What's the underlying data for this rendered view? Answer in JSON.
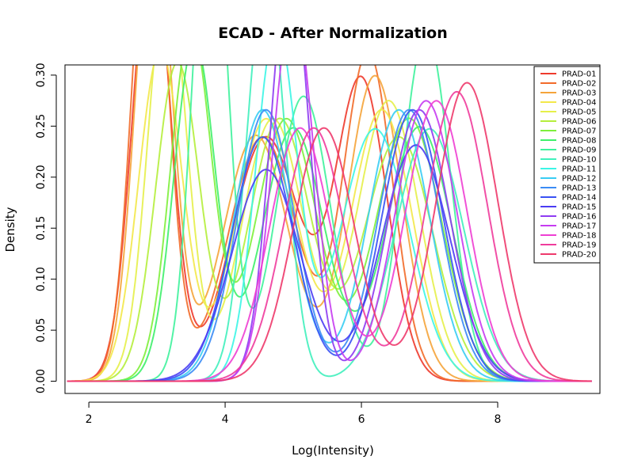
{
  "chart_data": {
    "type": "line",
    "title": "ECAD - After Normalization",
    "xlabel": "Log(Intensity)",
    "ylabel": "Density",
    "xlim": [
      1.65,
      9.5
    ],
    "ylim": [
      -0.012,
      0.31
    ],
    "xticks": [
      2,
      4,
      6,
      8
    ],
    "yticks": [
      0.0,
      0.05,
      0.1,
      0.15,
      0.2,
      0.25,
      0.3
    ],
    "ytick_labels": [
      "0.00",
      "0.05",
      "0.10",
      "0.15",
      "0.20",
      "0.25",
      "0.30"
    ],
    "legend_position": "top-right",
    "grid": false,
    "series": [
      {
        "name": "PRAD-01",
        "color": "#ee3a2c",
        "peaks": [
          [
            2.92,
            0.28,
            0.3
          ],
          [
            4.6,
            0.5,
            0.3
          ],
          [
            6.0,
            0.38,
            0.28
          ]
        ]
      },
      {
        "name": "PRAD-02",
        "color": "#f26b2a",
        "peaks": [
          [
            2.9,
            0.26,
            0.32
          ],
          [
            4.55,
            0.5,
            0.3
          ],
          [
            6.1,
            0.36,
            0.29
          ]
        ]
      },
      {
        "name": "PRAD-03",
        "color": "#f5a43a",
        "peaks": [
          [
            2.95,
            0.27,
            0.31
          ],
          [
            4.45,
            0.48,
            0.29
          ],
          [
            6.2,
            0.4,
            0.3
          ]
        ]
      },
      {
        "name": "PRAD-04",
        "color": "#f3e84a",
        "peaks": [
          [
            3.05,
            0.32,
            0.26
          ],
          [
            4.6,
            0.45,
            0.29
          ],
          [
            6.3,
            0.45,
            0.3
          ]
        ]
      },
      {
        "name": "PRAD-05",
        "color": "#e6f04a",
        "peaks": [
          [
            3.15,
            0.28,
            0.28
          ],
          [
            4.7,
            0.45,
            0.29
          ],
          [
            6.4,
            0.45,
            0.31
          ]
        ]
      },
      {
        "name": "PRAD-06",
        "color": "#b5ee3c",
        "peaks": [
          [
            3.3,
            0.32,
            0.25
          ],
          [
            4.8,
            0.45,
            0.29
          ],
          [
            6.55,
            0.5,
            0.3
          ]
        ]
      },
      {
        "name": "PRAD-07",
        "color": "#7eef3c",
        "peaks": [
          [
            3.5,
            0.3,
            0.26
          ],
          [
            4.9,
            0.45,
            0.29
          ],
          [
            6.7,
            0.48,
            0.31
          ]
        ]
      },
      {
        "name": "PRAD-08",
        "color": "#3ef06a",
        "peaks": [
          [
            3.55,
            0.3,
            0.25
          ],
          [
            5.0,
            0.45,
            0.28
          ],
          [
            6.85,
            0.48,
            0.3
          ]
        ]
      },
      {
        "name": "PRAD-09",
        "color": "#3ff29c",
        "peaks": [
          [
            3.78,
            0.25,
            0.32
          ],
          [
            5.15,
            0.4,
            0.28
          ],
          [
            6.95,
            0.35,
            0.3
          ]
        ]
      },
      {
        "name": "PRAD-10",
        "color": "#40f0bc",
        "peaks": [
          [
            4.6,
            0.28,
            0.28
          ],
          [
            7.0,
            0.5,
            0.31
          ]
        ]
      },
      {
        "name": "PRAD-11",
        "color": "#3cf5e6",
        "peaks": [
          [
            4.75,
            0.3,
            0.26
          ],
          [
            6.2,
            0.5,
            0.31
          ]
        ]
      },
      {
        "name": "PRAD-12",
        "color": "#39cdf3",
        "peaks": [
          [
            4.55,
            0.42,
            0.28
          ],
          [
            6.55,
            0.45,
            0.3
          ]
        ]
      },
      {
        "name": "PRAD-13",
        "color": "#3b8cf5",
        "peaks": [
          [
            4.6,
            0.42,
            0.28
          ],
          [
            6.7,
            0.45,
            0.3
          ]
        ]
      },
      {
        "name": "PRAD-14",
        "color": "#3a52f4",
        "peaks": [
          [
            4.55,
            0.45,
            0.27
          ],
          [
            6.75,
            0.45,
            0.3
          ]
        ]
      },
      {
        "name": "PRAD-15",
        "color": "#4b3cf3",
        "peaks": [
          [
            4.6,
            0.5,
            0.26
          ],
          [
            6.8,
            0.5,
            0.29
          ]
        ]
      },
      {
        "name": "PRAD-16",
        "color": "#8e3cf2",
        "peaks": [
          [
            4.95,
            0.28,
            0.29
          ],
          [
            6.85,
            0.45,
            0.3
          ]
        ]
      },
      {
        "name": "PRAD-17",
        "color": "#c63cf1",
        "peaks": [
          [
            5.0,
            0.3,
            0.28
          ],
          [
            6.95,
            0.45,
            0.31
          ]
        ]
      },
      {
        "name": "PRAD-18",
        "color": "#ee3fd3",
        "peaks": [
          [
            5.1,
            0.45,
            0.28
          ],
          [
            7.1,
            0.45,
            0.31
          ]
        ]
      },
      {
        "name": "PRAD-19",
        "color": "#ef3c9c",
        "peaks": [
          [
            5.3,
            0.45,
            0.28
          ],
          [
            7.4,
            0.45,
            0.32
          ]
        ]
      },
      {
        "name": "PRAD-20",
        "color": "#ee3a6c",
        "peaks": [
          [
            5.45,
            0.45,
            0.28
          ],
          [
            7.55,
            0.45,
            0.33
          ]
        ]
      }
    ]
  }
}
